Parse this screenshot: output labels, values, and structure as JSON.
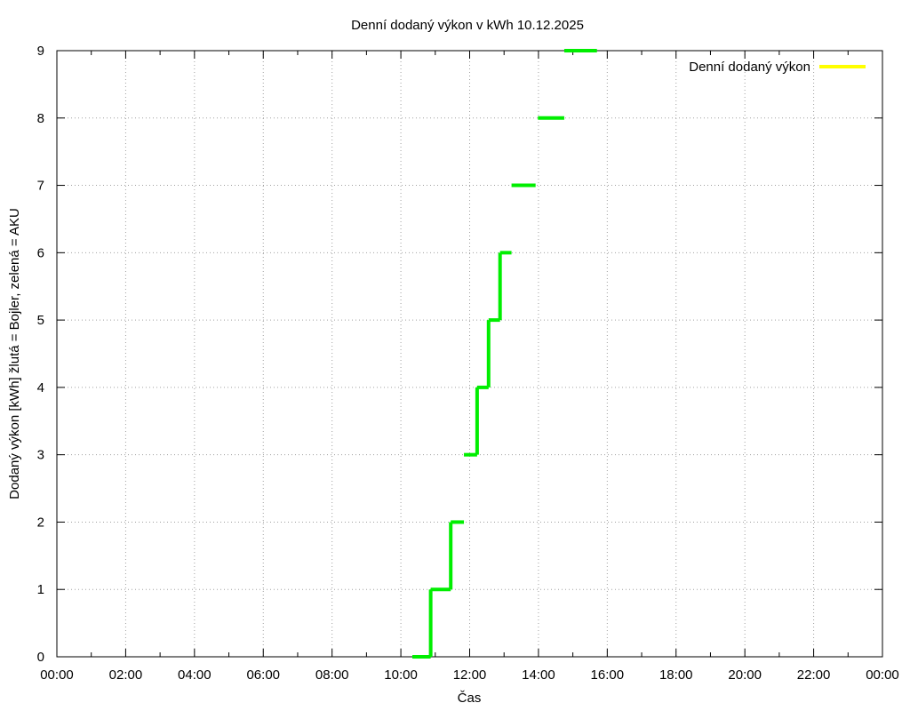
{
  "chart_data": {
    "type": "line",
    "title": "Denní dodaný výkon v kWh 10.12.2025",
    "xlabel": "Čas",
    "ylabel": "Dodaný výkon [kWh]  žlutá = Bojler, zelená = AKU",
    "xlim": [
      "00:00",
      "24:00"
    ],
    "ylim": [
      0,
      9
    ],
    "x_ticks": [
      "00:00",
      "02:00",
      "04:00",
      "06:00",
      "08:00",
      "10:00",
      "12:00",
      "14:00",
      "16:00",
      "18:00",
      "20:00",
      "22:00",
      "00:00"
    ],
    "y_ticks": [
      "0",
      "1",
      "2",
      "3",
      "4",
      "5",
      "6",
      "7",
      "8",
      "9"
    ],
    "grid": true,
    "legend": {
      "position": "top-right",
      "entries": [
        {
          "label": "Denní dodaný výkon",
          "color": "#ffff00"
        }
      ]
    },
    "series": [
      {
        "color": "#00ee00",
        "x": [
          "10:20",
          "10:52",
          "10:52",
          "11:27",
          "11:27",
          "11:50",
          "12:10",
          "12:10",
          "12:28",
          "12:28",
          "12:40",
          "12:40",
          "12:50",
          "12:50",
          "13:03",
          "13:20",
          "13:59",
          "14:45",
          "14:45",
          "15:50"
        ],
        "y": [
          0,
          0,
          1,
          1,
          2,
          2,
          3,
          3,
          4,
          4,
          5,
          5,
          5,
          5,
          6,
          6,
          7,
          7,
          8,
          9
        ]
      }
    ],
    "segments": [
      {
        "from": [
          "10:20",
          0
        ],
        "to": [
          "10:52",
          0
        ]
      },
      {
        "from": [
          "10:52",
          0
        ],
        "to": [
          "10:52",
          1
        ]
      },
      {
        "from": [
          "10:52",
          1
        ],
        "to": [
          "11:27",
          1
        ]
      },
      {
        "from": [
          "11:27",
          1
        ],
        "to": [
          "11:27",
          2
        ]
      },
      {
        "from": [
          "11:27",
          2
        ],
        "to": [
          "11:50",
          2
        ]
      },
      {
        "from": [
          "11:50",
          3
        ],
        "to": [
          "12:13",
          3
        ]
      },
      {
        "from": [
          "12:13",
          3
        ],
        "to": [
          "12:13",
          4
        ]
      },
      {
        "from": [
          "12:13",
          4
        ],
        "to": [
          "12:33",
          4
        ]
      },
      {
        "from": [
          "12:33",
          4
        ],
        "to": [
          "12:33",
          5
        ]
      },
      {
        "from": [
          "12:33",
          5
        ],
        "to": [
          "12:53",
          5
        ]
      },
      {
        "from": [
          "12:53",
          5
        ],
        "to": [
          "12:53",
          6
        ]
      },
      {
        "from": [
          "12:53",
          6
        ],
        "to": [
          "13:13",
          6
        ]
      },
      {
        "from": [
          "13:13",
          7
        ],
        "to": [
          "13:55",
          7
        ]
      },
      {
        "from": [
          "13:59",
          8
        ],
        "to": [
          "14:45",
          8
        ]
      },
      {
        "from": [
          "14:45",
          9
        ],
        "to": [
          "15:42",
          9
        ]
      }
    ],
    "colors": {
      "line": "#00ee00",
      "legend_line": "#ffff00"
    }
  }
}
